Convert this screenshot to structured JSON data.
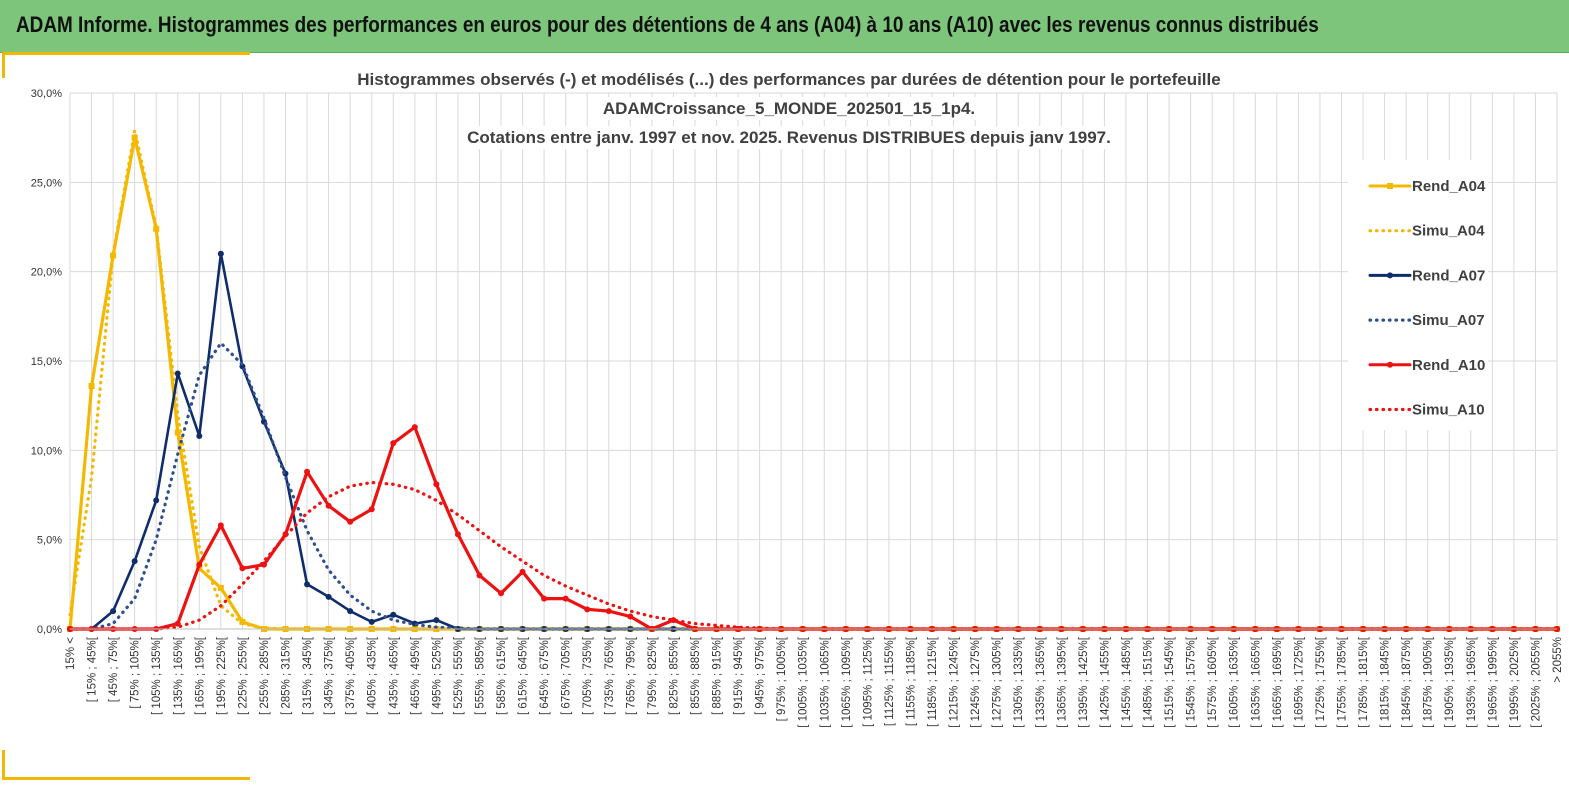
{
  "header": {
    "title": "ADAM Informe. Histogrammes des performances en euros pour des détentions de 4 ans (A04) à 10 ans (A10) avec les revenus connus distribués"
  },
  "chart_data": {
    "type": "line",
    "title": [
      "Histogrammes observés (-) et modélisés (...) des performances par durées de détention pour le portefeuille",
      "ADAMCroissance_5_MONDE_202501_15_1p4.",
      "Cotations entre janv. 1997 et nov. 2025. Revenus DISTRIBUES depuis janv 1997."
    ],
    "xlabel": "",
    "ylabel": "",
    "ylim": [
      0,
      30
    ],
    "yticks": [
      "0,0%",
      "5,0%",
      "10,0%",
      "15,0%",
      "20,0%",
      "25,0%",
      "30,0%"
    ],
    "grid": true,
    "legend_position": "right",
    "categories": [
      "15% <",
      "[ 15% ; 45%[",
      "[ 45% ; 75%[",
      "[ 75% ; 105%[",
      "[ 105% ; 135%[",
      "[ 135% ; 165%[",
      "[ 165% ; 195%[",
      "[ 195% ; 225%[",
      "[ 225% ; 255%[",
      "[ 255% ; 285%[",
      "[ 285% ; 315%[",
      "[ 315% ; 345%[",
      "[ 345% ; 375%[",
      "[ 375% ; 405%[",
      "[ 405% ; 435%[",
      "[ 435% ; 465%[",
      "[ 465% ; 495%[",
      "[ 495% ; 525%[",
      "[ 525% ; 555%[",
      "[ 555% ; 585%[",
      "[ 585% ; 615%[",
      "[ 615% ; 645%[",
      "[ 645% ; 675%[",
      "[ 675% ; 705%[",
      "[ 705% ; 735%[",
      "[ 735% ; 765%[",
      "[ 765% ; 795%[",
      "[ 795% ; 825%[",
      "[ 825% ; 855%[",
      "[ 855% ; 885%[",
      "[ 885% ; 915%[",
      "[ 915% ; 945%[",
      "[ 945% ; 975%[",
      "[ 975% ; 1005%[",
      "[ 1005% ; 1035%[",
      "[ 1035% ; 1065%[",
      "[ 1065% ; 1095%[",
      "[ 1095% ; 1125%[",
      "[ 1125% ; 1155%[",
      "[ 1155% ; 1185%[",
      "[ 1185% ; 1215%[",
      "[ 1215% ; 1245%[",
      "[ 1245% ; 1275%[",
      "[ 1275% ; 1305%[",
      "[ 1305% ; 1335%[",
      "[ 1335% ; 1365%[",
      "[ 1365% ; 1395%[",
      "[ 1395% ; 1425%[",
      "[ 1425% ; 1455%[",
      "[ 1455% ; 1485%[",
      "[ 1485% ; 1515%[",
      "[ 1515% ; 1545%[",
      "[ 1545% ; 1575%[",
      "[ 1575% ; 1605%[",
      "[ 1605% ; 1635%[",
      "[ 1635% ; 1665%[",
      "[ 1665% ; 1695%[",
      "[ 1695% ; 1725%[",
      "[ 1725% ; 1755%[",
      "[ 1755% ; 1785%[",
      "[ 1785% ; 1815%[",
      "[ 1815% ; 1845%[",
      "[ 1845% ; 1875%[",
      "[ 1875% ; 1905%[",
      "[ 1905% ; 1935%[",
      "[ 1935% ; 1965%[",
      "[ 1965% ; 1995%[",
      "[ 1995% ; 2025%[",
      "[ 2025% ; 2055%[",
      "> 2055%"
    ],
    "series": [
      {
        "name": "Rend_A04",
        "color": "#f5b800",
        "style": "solid",
        "marker": "square",
        "values": [
          0,
          13.6,
          20.9,
          27.5,
          22.4,
          11.0,
          3.4,
          2.3,
          0.4,
          0,
          0,
          0,
          0,
          0,
          0,
          0,
          0,
          0,
          0,
          0,
          0,
          0,
          0,
          0,
          0,
          0,
          0,
          0,
          0,
          0,
          0,
          0,
          0,
          0,
          0,
          0,
          0,
          0,
          0,
          0,
          0,
          0,
          0,
          0,
          0,
          0,
          0,
          0,
          0,
          0,
          0,
          0,
          0,
          0,
          0,
          0,
          0,
          0,
          0,
          0,
          0,
          0,
          0,
          0,
          0,
          0,
          0,
          0,
          0,
          0
        ]
      },
      {
        "name": "Simu_A04",
        "color": "#f5b800",
        "style": "dotted",
        "marker": "none",
        "values": [
          0.8,
          8.5,
          21.0,
          27.9,
          22.5,
          12.0,
          4.6,
          1.3,
          0.3,
          0.05,
          0,
          0,
          0,
          0,
          0,
          0,
          0,
          0,
          0,
          0,
          0,
          0,
          0,
          0,
          0,
          0,
          0,
          0,
          0,
          0,
          0,
          0,
          0,
          0,
          0,
          0,
          0,
          0,
          0,
          0,
          0,
          0,
          0,
          0,
          0,
          0,
          0,
          0,
          0,
          0,
          0,
          0,
          0,
          0,
          0,
          0,
          0,
          0,
          0,
          0,
          0,
          0,
          0,
          0,
          0,
          0,
          0,
          0,
          0,
          0
        ]
      },
      {
        "name": "Rend_A07",
        "color": "#0f2d6b",
        "style": "solid",
        "marker": "circle",
        "values": [
          0,
          0,
          1.0,
          3.8,
          7.2,
          14.3,
          10.8,
          21.0,
          14.7,
          11.6,
          8.7,
          2.5,
          1.8,
          1.0,
          0.4,
          0.8,
          0.3,
          0.5,
          0,
          0,
          0,
          0,
          0,
          0,
          0,
          0,
          0,
          0,
          0,
          0,
          0,
          0,
          0,
          0,
          0,
          0,
          0,
          0,
          0,
          0,
          0,
          0,
          0,
          0,
          0,
          0,
          0,
          0,
          0,
          0,
          0,
          0,
          0,
          0,
          0,
          0,
          0,
          0,
          0,
          0,
          0,
          0,
          0,
          0,
          0,
          0,
          0,
          0,
          0,
          0
        ]
      },
      {
        "name": "Simu_A07",
        "color": "#2f4f8f",
        "style": "dotted",
        "marker": "none",
        "values": [
          0,
          0,
          0.3,
          1.7,
          5.0,
          9.8,
          14.2,
          16.0,
          14.8,
          11.8,
          8.5,
          5.5,
          3.3,
          1.9,
          1.0,
          0.5,
          0.25,
          0.1,
          0.05,
          0,
          0,
          0,
          0,
          0,
          0,
          0,
          0,
          0,
          0,
          0,
          0,
          0,
          0,
          0,
          0,
          0,
          0,
          0,
          0,
          0,
          0,
          0,
          0,
          0,
          0,
          0,
          0,
          0,
          0,
          0,
          0,
          0,
          0,
          0,
          0,
          0,
          0,
          0,
          0,
          0,
          0,
          0,
          0,
          0,
          0,
          0,
          0,
          0,
          0,
          0
        ]
      },
      {
        "name": "Rend_A10",
        "color": "#ee1111",
        "style": "solid",
        "marker": "circle",
        "values": [
          0,
          0,
          0,
          0,
          0,
          0.3,
          3.6,
          5.8,
          3.4,
          3.6,
          5.3,
          8.8,
          6.9,
          6.0,
          6.7,
          10.4,
          11.3,
          8.1,
          5.3,
          3.0,
          2.0,
          3.2,
          1.7,
          1.7,
          1.1,
          1.0,
          0.7,
          0,
          0.5,
          0,
          0,
          0,
          0,
          0,
          0,
          0,
          0,
          0,
          0,
          0,
          0,
          0,
          0,
          0,
          0,
          0,
          0,
          0,
          0,
          0,
          0,
          0,
          0,
          0,
          0,
          0,
          0,
          0,
          0,
          0,
          0,
          0,
          0,
          0,
          0,
          0,
          0,
          0,
          0,
          0
        ]
      },
      {
        "name": "Simu_A10",
        "color": "#ee1111",
        "style": "dotted",
        "marker": "none",
        "values": [
          0,
          0,
          0,
          0,
          0,
          0.1,
          0.5,
          1.3,
          2.5,
          3.8,
          5.2,
          6.5,
          7.4,
          8.0,
          8.2,
          8.1,
          7.8,
          7.2,
          6.4,
          5.5,
          4.6,
          3.8,
          3.0,
          2.4,
          1.9,
          1.4,
          1.0,
          0.7,
          0.5,
          0.3,
          0.2,
          0.1,
          0.05,
          0,
          0,
          0,
          0,
          0,
          0,
          0,
          0,
          0,
          0,
          0,
          0,
          0,
          0,
          0,
          0,
          0,
          0,
          0,
          0,
          0,
          0,
          0,
          0,
          0,
          0,
          0,
          0,
          0,
          0,
          0,
          0,
          0,
          0,
          0,
          0,
          0
        ]
      }
    ]
  }
}
